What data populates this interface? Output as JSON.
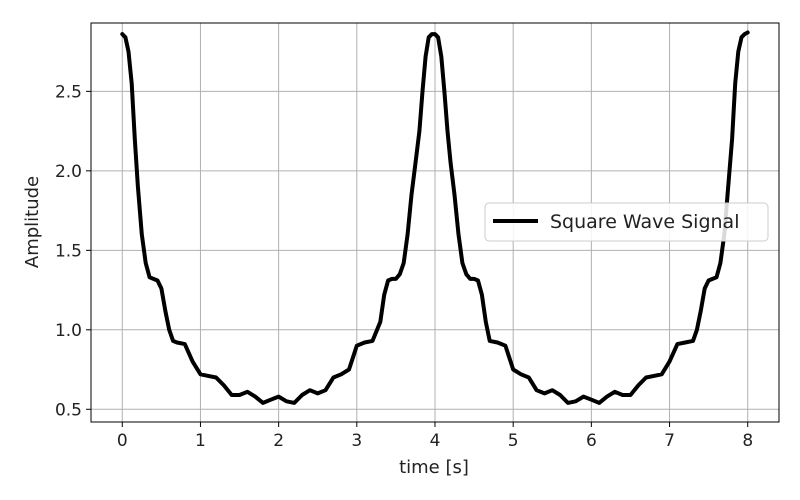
{
  "chart_data": {
    "type": "line",
    "title": "",
    "xlabel": "time [s]",
    "ylabel": "Amplitude",
    "xlim": [
      -0.4,
      8.4
    ],
    "ylim": [
      0.42,
      2.93
    ],
    "x_ticks": [
      0,
      1,
      2,
      3,
      4,
      5,
      6,
      7,
      8
    ],
    "x_tick_labels": [
      "0",
      "1",
      "2",
      "3",
      "4",
      "5",
      "6",
      "7",
      "8"
    ],
    "y_ticks": [
      0.5,
      1.0,
      1.5,
      2.0,
      2.5
    ],
    "y_tick_labels": [
      "0.5",
      "1.0",
      "1.5",
      "2.0",
      "2.5"
    ],
    "grid": true,
    "legend_position": "center-right",
    "series": [
      {
        "name": "Square Wave Signal",
        "color": "#000000",
        "x": [
          0,
          0.04,
          0.08,
          0.12,
          0.16,
          0.2,
          0.25,
          0.3,
          0.35,
          0.4,
          0.45,
          0.5,
          0.55,
          0.6,
          0.65,
          0.7,
          0.8,
          0.9,
          1.0,
          1.1,
          1.2,
          1.3,
          1.4,
          1.5,
          1.6,
          1.7,
          1.8,
          1.9,
          2.0,
          2.1,
          2.2,
          2.3,
          2.4,
          2.5,
          2.6,
          2.7,
          2.8,
          2.9,
          3.0,
          3.1,
          3.2,
          3.3,
          3.35,
          3.4,
          3.45,
          3.5,
          3.55,
          3.6,
          3.65,
          3.7,
          3.75,
          3.8,
          3.84,
          3.88,
          3.92,
          3.96,
          4.0,
          4.04,
          4.08,
          4.12,
          4.16,
          4.2,
          4.25,
          4.3,
          4.35,
          4.4,
          4.45,
          4.5,
          4.55,
          4.6,
          4.65,
          4.7,
          4.8,
          4.9,
          5.0,
          5.1,
          5.2,
          5.3,
          5.4,
          5.5,
          5.6,
          5.7,
          5.8,
          5.9,
          6.0,
          6.1,
          6.2,
          6.3,
          6.4,
          6.5,
          6.6,
          6.7,
          6.8,
          6.9,
          7.0,
          7.1,
          7.2,
          7.3,
          7.35,
          7.4,
          7.45,
          7.5,
          7.55,
          7.6,
          7.65,
          7.7,
          7.75,
          7.8,
          7.84,
          7.88,
          7.92,
          7.96,
          8.0
        ],
        "values": [
          2.86,
          2.84,
          2.75,
          2.55,
          2.2,
          1.9,
          1.6,
          1.42,
          1.33,
          1.32,
          1.31,
          1.26,
          1.12,
          1.0,
          0.93,
          0.92,
          0.91,
          0.8,
          0.72,
          0.71,
          0.7,
          0.65,
          0.59,
          0.59,
          0.61,
          0.58,
          0.54,
          0.56,
          0.58,
          0.55,
          0.54,
          0.59,
          0.62,
          0.6,
          0.62,
          0.7,
          0.72,
          0.75,
          0.9,
          0.92,
          0.93,
          1.05,
          1.22,
          1.31,
          1.32,
          1.32,
          1.35,
          1.42,
          1.6,
          1.85,
          2.05,
          2.25,
          2.5,
          2.72,
          2.84,
          2.86,
          2.86,
          2.84,
          2.72,
          2.5,
          2.25,
          2.05,
          1.85,
          1.6,
          1.42,
          1.35,
          1.32,
          1.32,
          1.31,
          1.22,
          1.05,
          0.93,
          0.92,
          0.9,
          0.75,
          0.72,
          0.7,
          0.62,
          0.6,
          0.62,
          0.59,
          0.54,
          0.55,
          0.58,
          0.56,
          0.54,
          0.58,
          0.61,
          0.59,
          0.59,
          0.65,
          0.7,
          0.71,
          0.72,
          0.8,
          0.91,
          0.92,
          0.93,
          1.0,
          1.12,
          1.26,
          1.31,
          1.32,
          1.33,
          1.42,
          1.6,
          1.9,
          2.2,
          2.55,
          2.75,
          2.84,
          2.86,
          2.87
        ]
      }
    ]
  }
}
